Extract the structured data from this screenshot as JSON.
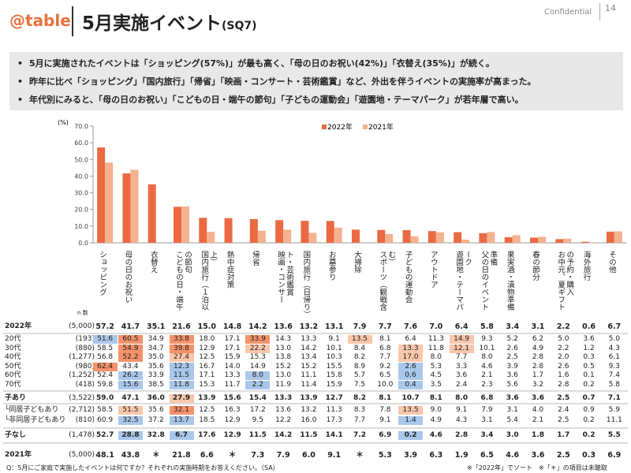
{
  "header": {
    "logo": "@table",
    "title": "5月実施イベント",
    "code": "(SQ7)",
    "confidential": "Confidential",
    "page": "14"
  },
  "bullets": [
    "5月に実施されたイベントは「ショッピング(57%)」が最も高く、「母の日のお祝い(42%)」「衣替え(35%)」が続く。",
    "昨年に比べ「ショッピング」「国内旅行」「帰省」「映画・コンサート・芸術鑑賞」など、外出を伴うイベントの実施率が高まった。",
    "年代別にみると、「母の日のお祝い」「こどもの日・端午の節句」「子どもの運動会」「遊園地・テーマパーク」が若年層で高い。"
  ],
  "chart_data": {
    "type": "bar",
    "y_label": "(%)",
    "legend": "top",
    "n_label": "n 数",
    "categories": [
      "ショッピング",
      "母の日のお祝い",
      "衣替え",
      "こどもの日・端午の節句",
      "国内旅行（１泊以上）",
      "熱中症対策",
      "帰省",
      "映画・コンサート・芸術鑑賞",
      "国内旅行（日帰り）",
      "お墓参り",
      "大掃除",
      "スポーツ（観戦含む）",
      "子どもの運動会",
      "アウトドア",
      "遊園地・テーマパーク",
      "父の日のイベント準備",
      "果実酒・漬物準備",
      "春の節分",
      "お中元、夏ギフトの予約・購入",
      "海外旅行",
      "その他"
    ],
    "ylim": [
      0,
      70
    ],
    "yticks": [
      {
        "value": 0,
        "label": "0.0"
      },
      {
        "value": 10,
        "label": "10.0"
      },
      {
        "value": 20,
        "label": "20.0"
      },
      {
        "value": 30,
        "label": "30.0"
      },
      {
        "value": 40,
        "label": "40.0"
      },
      {
        "value": 50,
        "label": "50.0"
      },
      {
        "value": 60,
        "label": "60.0"
      },
      {
        "value": 70,
        "label": "70.0"
      }
    ],
    "series": [
      {
        "name": "2022年",
        "n": "(5,000)",
        "color": "#ea6a43",
        "values": [
          57.2,
          41.7,
          35.1,
          21.6,
          15.0,
          14.8,
          14.2,
          13.6,
          13.2,
          13.1,
          7.9,
          7.7,
          7.6,
          7.0,
          6.4,
          5.8,
          3.4,
          3.1,
          2.2,
          0.6,
          6.7
        ],
        "value_labels": [
          "57.2",
          "41.7",
          "35.1",
          "21.6",
          "15.0",
          "14.8",
          "14.2",
          "13.6",
          "13.2",
          "13.1",
          "7.9",
          "7.7",
          "7.6",
          "7.0",
          "6.4",
          "5.8",
          "3.4",
          "3.1",
          "2.2",
          "0.6",
          "6.7"
        ]
      },
      {
        "name": "2021年",
        "n": "(5,000)",
        "color": "#f4b28e",
        "values": [
          48.1,
          43.8,
          null,
          21.8,
          6.6,
          null,
          7.3,
          7.9,
          6.0,
          9.1,
          null,
          5.3,
          3.9,
          6.3,
          1.9,
          6.5,
          4.6,
          3.6,
          2.5,
          0.3,
          6.9
        ],
        "value_labels": [
          "48.1",
          "43.8",
          "＊",
          "21.8",
          "6.6",
          "＊",
          "7.3",
          "7.9",
          "6.0",
          "9.1",
          "＊",
          "5.3",
          "3.9",
          "6.3",
          "1.9",
          "6.5",
          "4.6",
          "3.6",
          "2.5",
          "0.3",
          "6.9"
        ]
      }
    ]
  },
  "table": {
    "rows": [
      {
        "label": "20代",
        "n": "(193)",
        "values": [
          "51.6",
          "60.5",
          "34.9",
          "33.8",
          "18.0",
          "17.1",
          "33.9",
          "14.3",
          "13.3",
          "9.1",
          "13.5",
          "8.1",
          "6.4",
          "11.3",
          "14.9",
          "9.3",
          "5.2",
          "6.2",
          "5.0",
          "3.6",
          "5.0"
        ],
        "colors": [
          "#a9c7ea",
          "#f4926a",
          null,
          "#f4926a",
          null,
          null,
          "#f4926a",
          null,
          null,
          null,
          "#f9c7ab",
          null,
          null,
          null,
          "#f9c7ab",
          null,
          null,
          null,
          null,
          null,
          null
        ]
      },
      {
        "label": "30代",
        "n": "(880)",
        "values": [
          "58.5",
          "54.9",
          "34.7",
          "39.8",
          "12.9",
          "17.1",
          "22.2",
          "13.0",
          "14.2",
          "10.1",
          "8.4",
          "6.8",
          "13.3",
          "11.8",
          "12.1",
          "10.1",
          "2.6",
          "4.9",
          "2.2",
          "1.2",
          "4.3"
        ],
        "colors": [
          null,
          "#f4926a",
          null,
          "#f4926a",
          null,
          null,
          "#f9c7ab",
          null,
          null,
          null,
          null,
          null,
          "#f9c7ab",
          null,
          "#f9c7ab",
          null,
          null,
          null,
          null,
          null,
          null
        ]
      },
      {
        "label": "40代",
        "n": "(1,277)",
        "values": [
          "56.8",
          "52.2",
          "35.0",
          "27.4",
          "12.5",
          "15.9",
          "15.3",
          "13.8",
          "13.4",
          "10.3",
          "8.2",
          "7.7",
          "17.0",
          "8.0",
          "7.7",
          "8.0",
          "2.5",
          "2.8",
          "2.0",
          "0.3",
          "6.1"
        ],
        "colors": [
          null,
          "#f4926a",
          null,
          "#f9c7ab",
          null,
          null,
          null,
          null,
          null,
          null,
          null,
          null,
          "#f9c7ab",
          null,
          null,
          null,
          null,
          null,
          null,
          null,
          null
        ]
      },
      {
        "label": "50代",
        "n": "(980)",
        "values": [
          "62.4",
          "43.4",
          "35.6",
          "12.3",
          "16.7",
          "14.0",
          "14.9",
          "15.2",
          "15.2",
          "15.5",
          "8.9",
          "9.2",
          "2.6",
          "5.3",
          "3.3",
          "4.6",
          "3.9",
          "2.8",
          "2.6",
          "0.5",
          "9.3"
        ],
        "colors": [
          "#f4926a",
          null,
          null,
          "#a9c7ea",
          null,
          null,
          null,
          null,
          null,
          null,
          null,
          null,
          "#a9c7ea",
          null,
          null,
          null,
          null,
          null,
          null,
          null,
          null
        ]
      },
      {
        "label": "60代",
        "n": "(1,252)",
        "values": [
          "52.4",
          "26.2",
          "33.9",
          "11.5",
          "17.1",
          "13.3",
          "8.0",
          "13.0",
          "11.1",
          "15.8",
          "5.7",
          "6.5",
          "0.6",
          "4.5",
          "3.6",
          "2.1",
          "3.6",
          "1.7",
          "1.6",
          "0.1",
          "7.4"
        ],
        "colors": [
          null,
          "#a9c7ea",
          null,
          "#a9c7ea",
          null,
          null,
          "#a9c7ea",
          null,
          null,
          null,
          null,
          null,
          "#a9c7ea",
          null,
          null,
          null,
          null,
          null,
          null,
          null,
          null
        ]
      },
      {
        "label": "70代",
        "n": "(418)",
        "values": [
          "59.8",
          "15.6",
          "38.5",
          "11.8",
          "15.3",
          "11.7",
          "2.2",
          "11.9",
          "11.4",
          "15.9",
          "7.5",
          "10.0",
          "0.4",
          "3.5",
          "2.4",
          "2.3",
          "5.6",
          "3.2",
          "2.8",
          "0.2",
          "5.8"
        ],
        "colors": [
          null,
          "#a9c7ea",
          null,
          "#a9c7ea",
          null,
          null,
          "#a9c7ea",
          null,
          null,
          null,
          null,
          null,
          "#a9c7ea",
          null,
          null,
          null,
          null,
          null,
          null,
          null,
          null
        ]
      },
      {
        "label": "子あり",
        "n": "(3,522)",
        "bold": true,
        "values": [
          "59.0",
          "47.1",
          "36.0",
          "27.9",
          "13.9",
          "15.6",
          "15.4",
          "13.3",
          "13.9",
          "12.7",
          "8.2",
          "8.1",
          "10.7",
          "8.1",
          "8.0",
          "6.8",
          "3.6",
          "3.6",
          "2.5",
          "0.7",
          "7.1"
        ],
        "colors": [
          null,
          null,
          null,
          "#f9c7ab",
          null,
          null,
          null,
          null,
          null,
          null,
          null,
          null,
          null,
          null,
          null,
          null,
          null,
          null,
          null,
          null,
          null
        ]
      },
      {
        "label": "└同居子どもあり",
        "n": "(2,712)",
        "values": [
          "58.5",
          "51.5",
          "35.6",
          "32.1",
          "12.5",
          "16.3",
          "17.2",
          "13.6",
          "13.2",
          "11.3",
          "8.3",
          "7.8",
          "13.5",
          "9.0",
          "9.1",
          "7.9",
          "3.1",
          "4.0",
          "2.4",
          "0.9",
          "5.9"
        ],
        "colors": [
          null,
          "#f9c7ab",
          null,
          "#f4926a",
          null,
          null,
          null,
          null,
          null,
          null,
          null,
          null,
          "#f9c7ab",
          null,
          null,
          null,
          null,
          null,
          null,
          null,
          null
        ]
      },
      {
        "label": "└非同居子どもあり",
        "n": "(810)",
        "values": [
          "60.9",
          "32.5",
          "37.2",
          "13.7",
          "18.5",
          "12.9",
          "9.5",
          "12.2",
          "16.0",
          "17.3",
          "7.7",
          "9.1",
          "1.4",
          "4.9",
          "4.3",
          "3.1",
          "5.4",
          "2.1",
          "2.5",
          "0.2",
          "11.1"
        ],
        "colors": [
          null,
          "#a9c7ea",
          null,
          "#a9c7ea",
          null,
          null,
          null,
          null,
          null,
          null,
          null,
          null,
          "#a9c7ea",
          null,
          null,
          null,
          null,
          null,
          null,
          null,
          null
        ]
      },
      {
        "label": "子なし",
        "n": "(1,478)",
        "bold": true,
        "values": [
          "52.7",
          "28.8",
          "32.8",
          "6.7",
          "17.6",
          "12.9",
          "11.5",
          "14.2",
          "11.5",
          "14.1",
          "7.2",
          "6.9",
          "0.2",
          "4.6",
          "2.8",
          "3.4",
          "3.0",
          "1.8",
          "1.7",
          "0.2",
          "5.5"
        ],
        "colors": [
          null,
          "#a9c7ea",
          null,
          "#a9c7ea",
          null,
          null,
          null,
          null,
          null,
          null,
          null,
          null,
          "#a9c7ea",
          null,
          null,
          null,
          null,
          null,
          null,
          null,
          null
        ]
      }
    ]
  },
  "footer": {
    "question": "Q：5月にご家庭で実施したイベントは何ですか？それぞれの実施時期をお答えください。（SA）",
    "note": "※「2022年」でソート　※「＊」の項目は未聴取"
  }
}
